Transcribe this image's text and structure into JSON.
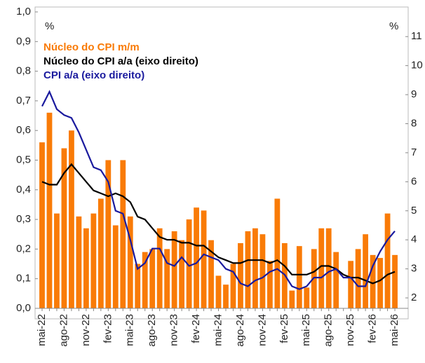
{
  "chart_data": {
    "type": "bar-line",
    "y_unit": "%",
    "y2_unit": "%",
    "legend": "upper-left",
    "categories": [
      "mai-22",
      null,
      null,
      "ago-22",
      null,
      null,
      "nov-22",
      null,
      null,
      "fev-23",
      null,
      null,
      "mai-23",
      null,
      null,
      "ago-23",
      null,
      null,
      "nov-23",
      null,
      null,
      "fev-24",
      null,
      null,
      "mai-24",
      null,
      null,
      "ago-24",
      null,
      null,
      "nov-24",
      null,
      null,
      "fev-25",
      null,
      null,
      "mai-25",
      null,
      null,
      "ago-25",
      null,
      null,
      "nov-25",
      null,
      null,
      "fev-26",
      null,
      null,
      "mai-26"
    ],
    "series": [
      {
        "name": "Núcleo do CPI m/m",
        "color": "#f97b07",
        "kind": "bar",
        "values": [
          0.56,
          0.66,
          0.32,
          0.54,
          0.6,
          0.31,
          0.27,
          0.32,
          0.37,
          0.5,
          0.28,
          0.5,
          0.31,
          0.15,
          0.19,
          0.2,
          0.27,
          0.2,
          0.26,
          0.23,
          0.3,
          0.34,
          0.33,
          0.23,
          0.11,
          0.08,
          0.15,
          0.22,
          0.26,
          0.27,
          0.25,
          0.16,
          0.37,
          0.22,
          0.06,
          0.21,
          0.07,
          0.2,
          0.27,
          0.27,
          0.19,
          null,
          0.16,
          0.2,
          0.25,
          0.18,
          0.17,
          0.32,
          0.18
        ]
      },
      {
        "name": "Núcleo do CPI a/a (eixo direito)",
        "color": "#000000",
        "kind": "line",
        "axis": "y2",
        "values": [
          6.0,
          5.9,
          5.9,
          6.3,
          6.6,
          6.3,
          6.0,
          5.7,
          5.6,
          5.5,
          5.6,
          5.5,
          5.3,
          4.8,
          4.7,
          4.4,
          4.1,
          4.0,
          4.0,
          3.9,
          3.9,
          3.8,
          3.8,
          3.6,
          3.4,
          3.3,
          3.2,
          3.2,
          3.3,
          3.3,
          3.3,
          3.2,
          3.3,
          3.1,
          2.8,
          2.8,
          2.8,
          2.9,
          3.1,
          3.1,
          3.0,
          2.8,
          2.7,
          2.7,
          2.6,
          2.5,
          2.6,
          2.8,
          2.9
        ]
      },
      {
        "name": "CPI a/a (eixo direito)",
        "color": "#1a1a9e",
        "kind": "line",
        "axis": "y2",
        "values": [
          8.6,
          9.1,
          8.5,
          8.3,
          8.2,
          7.7,
          7.1,
          6.5,
          6.4,
          6.0,
          5.0,
          4.9,
          4.0,
          3.0,
          3.2,
          3.7,
          3.7,
          3.2,
          3.1,
          3.4,
          3.1,
          3.2,
          3.5,
          3.4,
          3.3,
          3.0,
          2.9,
          2.5,
          2.4,
          2.6,
          2.7,
          2.9,
          3.0,
          2.8,
          2.4,
          2.3,
          2.4,
          2.7,
          2.7,
          2.9,
          3.0,
          2.7,
          2.7,
          2.4,
          2.4,
          3.1,
          3.6,
          4.0,
          4.3
        ]
      }
    ],
    "ylim": [
      0,
      1.0
    ],
    "yticks": [
      {
        "value": 0,
        "label": "0,0"
      },
      {
        "value": 0.1,
        "label": "0,1"
      },
      {
        "value": 0.2,
        "label": "0,2"
      },
      {
        "value": 0.3,
        "label": "0,3"
      },
      {
        "value": 0.4,
        "label": "0,4"
      },
      {
        "value": 0.5,
        "label": "0,5"
      },
      {
        "value": 0.6,
        "label": "0,6"
      },
      {
        "value": 0.7,
        "label": "0,7"
      },
      {
        "value": 0.8,
        "label": "0,8"
      },
      {
        "value": 0.9,
        "label": "0,9"
      },
      {
        "value": 1.0,
        "label": "1,0"
      }
    ],
    "y2lim": [
      1.64,
      11.85
    ],
    "y2ticks": [
      2,
      3,
      4,
      5,
      6,
      7,
      8,
      9,
      10,
      11
    ]
  }
}
